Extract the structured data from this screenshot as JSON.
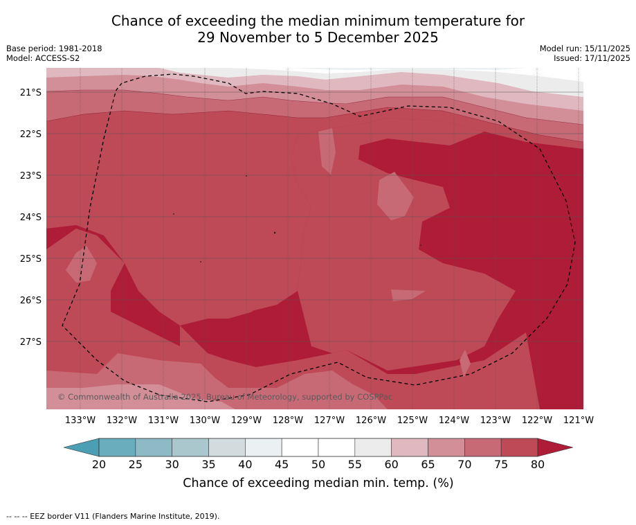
{
  "title": {
    "line1": "Chance of exceeding the median minimum temperature for",
    "line2": "29 November to 5 December 2025"
  },
  "meta": {
    "base_period": "Base period: 1981-2018",
    "model": "Model: ACCESS-S2",
    "model_run": "Model run: 15/11/2025",
    "issued": "Issued: 17/11/2025"
  },
  "map": {
    "lat_labels": [
      "21°S",
      "22°S",
      "23°S",
      "24°S",
      "25°S",
      "26°S",
      "27°S"
    ],
    "lon_labels": [
      "133°W",
      "132°W",
      "131°W",
      "130°W",
      "129°W",
      "128°W",
      "127°W",
      "126°W",
      "125°W",
      "124°W",
      "123°W",
      "122°W",
      "121°W"
    ],
    "copyright": "© Commonwealth of Australia 2025, Bureau of Meteorology, supported by COSPPac"
  },
  "colorbar": {
    "ticks": [
      "20",
      "25",
      "30",
      "35",
      "40",
      "45",
      "50",
      "55",
      "60",
      "65",
      "70",
      "75",
      "80"
    ],
    "colors": [
      "#6aaebd",
      "#8ebac5",
      "#a9c7cd",
      "#d2dbdd",
      "#ebf0f2",
      "#ffffff",
      "#ffffff",
      "#ececec",
      "#e0b8bf",
      "#d38f98",
      "#c86a76",
      "#be4a58",
      "#ae1c37"
    ],
    "low_color": "#4a9fb2",
    "high_color": "#ae1c37",
    "label": "Chance of exceeding median min. temp. (%)"
  },
  "footnote": "-- -- -- EEZ border V11 (Flanders Marine Institute, 2019)."
}
